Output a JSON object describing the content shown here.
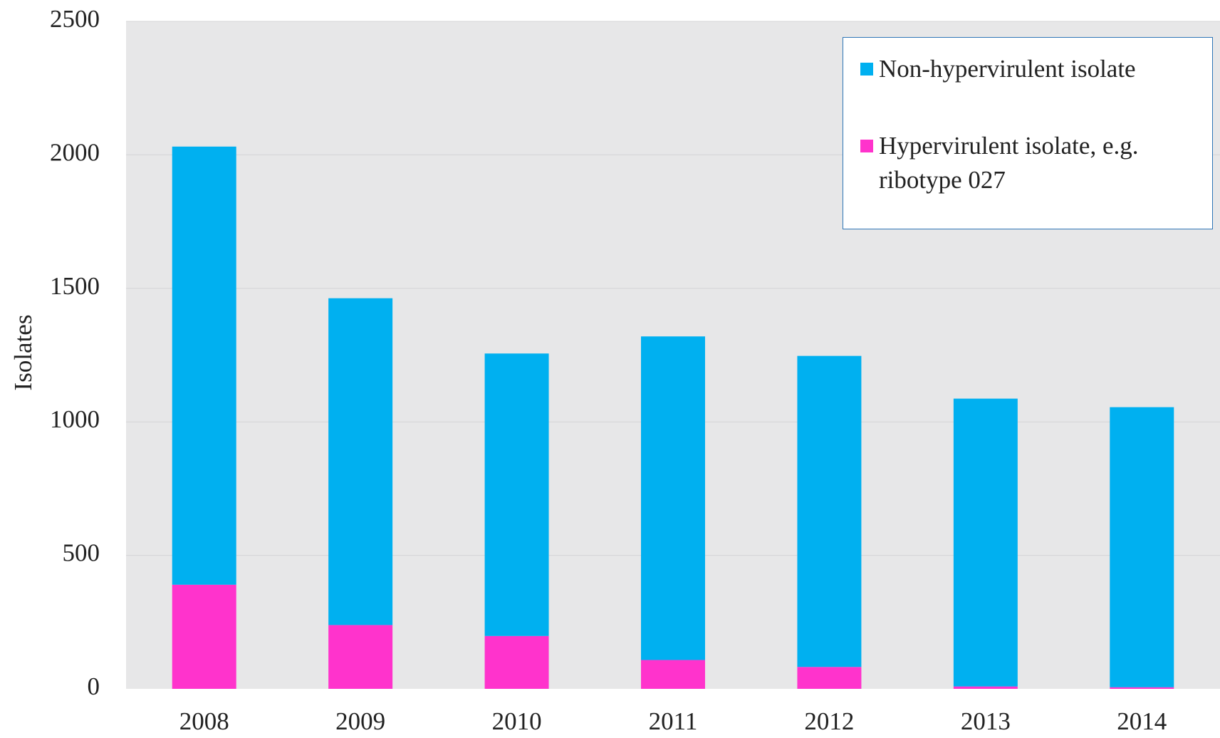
{
  "chart_data": {
    "type": "bar",
    "stacked": true,
    "y_label": "Isolates",
    "categories": [
      "2008",
      "2009",
      "2010",
      "2011",
      "2012",
      "2013",
      "2014"
    ],
    "series": [
      {
        "name": "Non-hypervirulent isolate",
        "color": "#00b0f0",
        "values": [
          1641,
          1224,
          1058,
          1212,
          1165,
          1078,
          1049
        ]
      },
      {
        "name": "Hypervirulent isolate, e.g. ribotype 027",
        "color": "#ff33cc",
        "values": [
          390,
          239,
          198,
          108,
          82,
          9,
          6
        ]
      }
    ],
    "ylim": [
      0,
      2500
    ],
    "yticks": [
      0,
      500,
      1000,
      1500,
      2000,
      2500
    ],
    "grid": true,
    "legend": "upper right"
  }
}
